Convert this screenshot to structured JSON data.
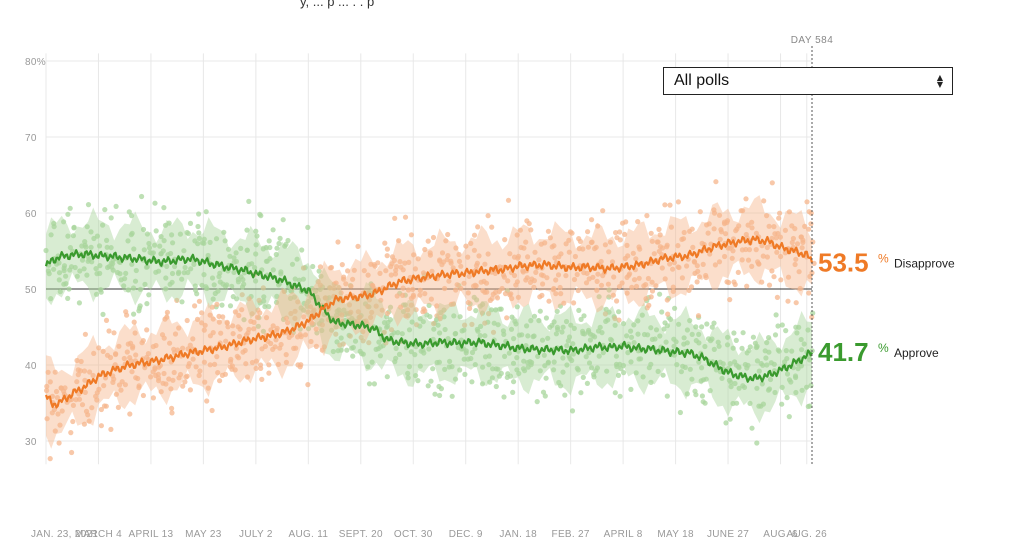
{
  "header": {
    "fragment": "y, ... p ... . . p"
  },
  "selector": {
    "value": "All polls",
    "arrows_icon": "updown-arrows-icon"
  },
  "colors": {
    "approve": "#3a9a2e",
    "disapprove": "#ef7a26",
    "approve_dots": "#a8d59c",
    "disapprove_dots": "#f6b58c",
    "gridline": "#e8e8e8",
    "baseline": "#333333"
  },
  "chart_data": {
    "type": "line",
    "title": "",
    "xlabel": "",
    "ylabel": "",
    "ylim": [
      28,
      81
    ],
    "y_ticks": [
      {
        "value": 80,
        "label": "80%"
      },
      {
        "value": 70,
        "label": "70"
      },
      {
        "value": 60,
        "label": "60"
      },
      {
        "value": 50,
        "label": "50"
      },
      {
        "value": 40,
        "label": "40"
      },
      {
        "value": 30,
        "label": "30"
      }
    ],
    "x_range": [
      0,
      584
    ],
    "x_ticks": [
      {
        "day": 0,
        "label": "JAN. 23, 2021"
      },
      {
        "day": 40,
        "label": "MARCH 4"
      },
      {
        "day": 80,
        "label": "APRIL 13"
      },
      {
        "day": 120,
        "label": "MAY 23"
      },
      {
        "day": 160,
        "label": "JULY 2"
      },
      {
        "day": 200,
        "label": "AUG. 11"
      },
      {
        "day": 240,
        "label": "SEPT. 20"
      },
      {
        "day": 280,
        "label": "OCT. 30"
      },
      {
        "day": 320,
        "label": "DEC. 9"
      },
      {
        "day": 360,
        "label": "JAN. 18"
      },
      {
        "day": 400,
        "label": "FEB. 27"
      },
      {
        "day": 440,
        "label": "APRIL 8"
      },
      {
        "day": 480,
        "label": "MAY 18"
      },
      {
        "day": 520,
        "label": "JUNE 27"
      },
      {
        "day": 560,
        "label": "AUG. 6"
      },
      {
        "day": 580,
        "label": "AUG. 26"
      }
    ],
    "current_day_label": "DAY 584",
    "series": [
      {
        "name": "Approve",
        "final_value": "41.7",
        "x": [
          0,
          5,
          10,
          20,
          30,
          40,
          50,
          60,
          70,
          80,
          90,
          100,
          110,
          120,
          130,
          140,
          150,
          160,
          170,
          180,
          190,
          200,
          210,
          220,
          230,
          240,
          250,
          260,
          270,
          280,
          290,
          300,
          310,
          320,
          330,
          340,
          350,
          360,
          370,
          380,
          390,
          400,
          410,
          420,
          430,
          440,
          450,
          460,
          470,
          480,
          490,
          500,
          510,
          520,
          530,
          540,
          550,
          560,
          570,
          580,
          584
        ],
        "values": [
          53,
          53.8,
          54.2,
          54.5,
          54.6,
          54.4,
          54.3,
          54.1,
          54,
          53.7,
          53.6,
          53.8,
          54,
          53.6,
          53.2,
          52.8,
          52.5,
          52,
          51.6,
          51.2,
          50.4,
          49.8,
          47.6,
          45.6,
          45.4,
          45.2,
          44.8,
          43.3,
          43,
          42.8,
          42.8,
          43,
          42.9,
          42.9,
          43,
          42.7,
          42.5,
          42.2,
          42.1,
          42,
          42,
          41.9,
          42.1,
          42.4,
          42.3,
          42.5,
          42.2,
          42.1,
          41.9,
          41.7,
          41.6,
          41,
          40,
          39,
          38.5,
          38.2,
          38.6,
          39.3,
          40.2,
          41.2,
          41.7
        ]
      },
      {
        "name": "Disapprove",
        "final_value": "53.5",
        "x": [
          0,
          5,
          10,
          20,
          30,
          40,
          50,
          60,
          70,
          80,
          90,
          100,
          110,
          120,
          130,
          140,
          150,
          160,
          170,
          180,
          190,
          200,
          210,
          220,
          230,
          240,
          250,
          260,
          270,
          280,
          290,
          300,
          310,
          320,
          330,
          340,
          350,
          360,
          370,
          380,
          390,
          400,
          410,
          420,
          430,
          440,
          450,
          460,
          470,
          480,
          490,
          500,
          510,
          520,
          530,
          540,
          550,
          560,
          570,
          580,
          584
        ],
        "values": [
          36,
          34.8,
          35,
          36.2,
          37.2,
          38.5,
          39.2,
          39.8,
          40.2,
          40.4,
          40.8,
          41.2,
          41.6,
          41.9,
          42.2,
          42.6,
          43.1,
          43.5,
          43.8,
          44.2,
          44.9,
          45.8,
          47.2,
          48.5,
          48.9,
          49,
          49.4,
          50.2,
          51,
          51.3,
          51.6,
          51.8,
          52,
          52.1,
          52.3,
          52.5,
          52.6,
          53,
          53.1,
          53.2,
          53,
          52.8,
          52.9,
          52.8,
          52.7,
          52.9,
          53.1,
          53.5,
          54,
          54.2,
          54.4,
          55,
          55.6,
          56,
          56.3,
          56.5,
          56.3,
          55.5,
          55,
          54.5,
          53.5
        ]
      }
    ]
  }
}
